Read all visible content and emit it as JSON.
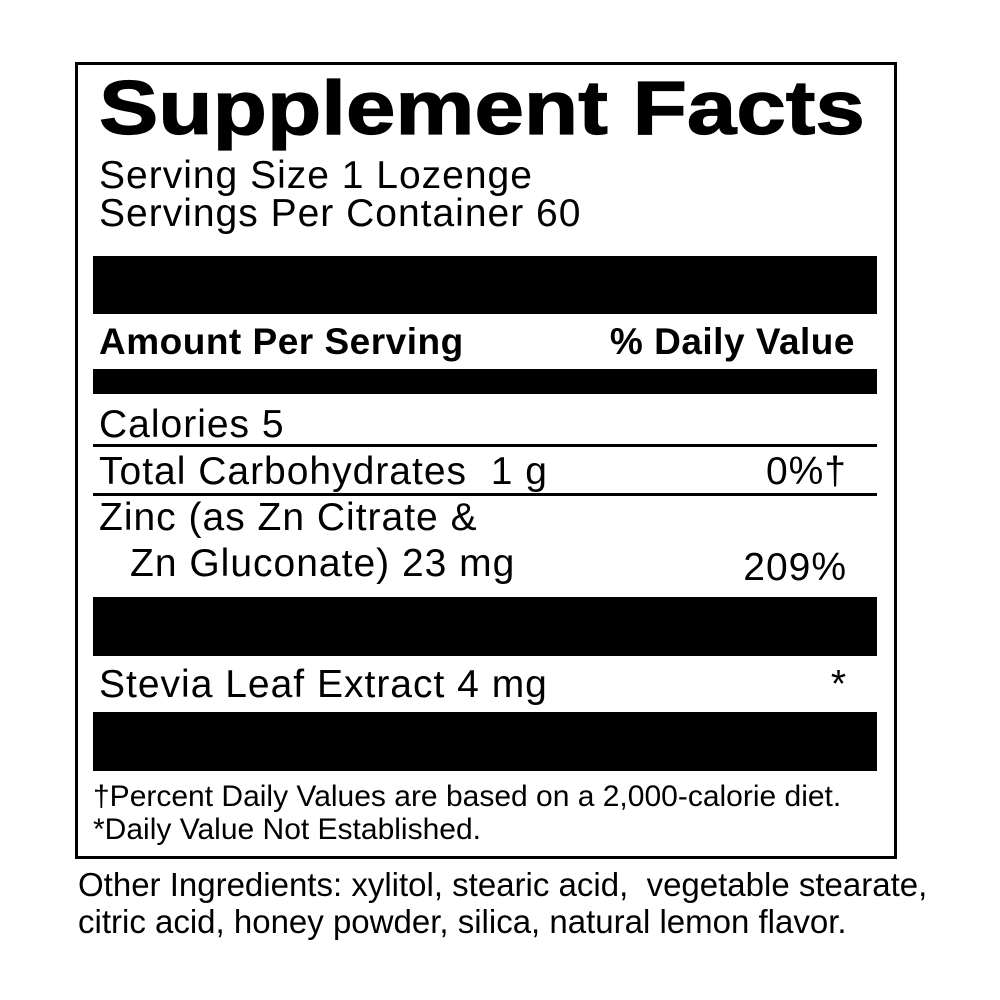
{
  "panel": {
    "title": "Supplement Facts",
    "serving_size": "Serving Size 1 Lozenge",
    "servings_per_container": "Servings Per Container 60",
    "columns": {
      "amount_header": "Amount Per Serving",
      "dv_header": "% Daily Value"
    },
    "rows": [
      {
        "name": "Calories 5",
        "dv": ""
      },
      {
        "name": "Total Carbohydrates  1 g",
        "dv": "0%†"
      },
      {
        "name_line1": "Zinc (as Zn Citrate &",
        "name_line2": "Zn Gluconate) 23 mg",
        "dv": "209%"
      },
      {
        "name": "Stevia Leaf Extract 4 mg",
        "dv": "*"
      }
    ],
    "footnotes": [
      "†Percent Daily Values are based on a 2,000-calorie diet.",
      "*Daily Value Not Established."
    ]
  },
  "other_ingredients": {
    "lines": [
      "Other Ingredients: xylitol, stearic acid,  vegetable stearate,",
      "citric acid, honey powder, silica, natural lemon flavor."
    ]
  },
  "colors": {
    "ink": "#000000",
    "background": "#ffffff"
  }
}
